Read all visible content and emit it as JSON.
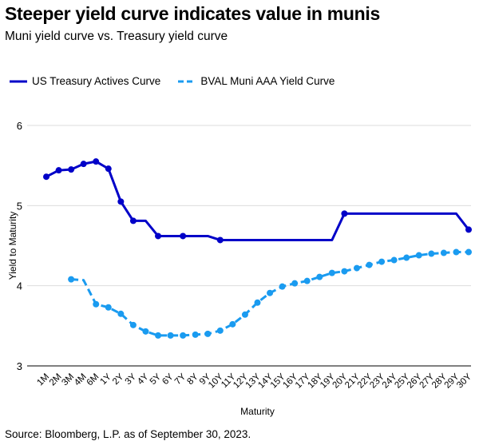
{
  "title": "Steeper yield curve indicates value in munis",
  "subtitle": "Muni yield curve vs. Treasury yield curve",
  "source": "Source: Bloomberg, L.P. as of September 30, 2023.",
  "chart_data": {
    "type": "line",
    "xlabel": "Maturity",
    "ylabel": "Yield to Maturity",
    "ylim": [
      3,
      6
    ],
    "yticks": [
      "3",
      "4",
      "5",
      "6"
    ],
    "grid": true,
    "legend_position": "top-left",
    "categories": [
      "1M",
      "2M",
      "3M",
      "4M",
      "6M",
      "1Y",
      "2Y",
      "3Y",
      "4Y",
      "5Y",
      "6Y",
      "7Y",
      "8Y",
      "9Y",
      "10Y",
      "11Y",
      "12Y",
      "13Y",
      "14Y",
      "15Y",
      "16Y",
      "17Y",
      "18Y",
      "19Y",
      "20Y",
      "21Y",
      "22Y",
      "23Y",
      "24Y",
      "25Y",
      "26Y",
      "27Y",
      "28Y",
      "29Y",
      "30Y"
    ],
    "series": [
      {
        "name": "US Treasury Actives Curve",
        "color": "#0000c8",
        "style": "solid",
        "values": [
          5.36,
          5.44,
          5.45,
          5.52,
          5.55,
          5.46,
          5.05,
          4.81,
          4.81,
          4.62,
          4.62,
          4.62,
          4.62,
          4.62,
          4.57,
          4.57,
          4.57,
          4.57,
          4.57,
          4.57,
          4.57,
          4.57,
          4.57,
          4.57,
          4.9,
          4.9,
          4.9,
          4.9,
          4.9,
          4.9,
          4.9,
          4.9,
          4.9,
          4.9,
          4.7
        ],
        "markers": [
          1,
          1,
          1,
          1,
          1,
          1,
          1,
          1,
          0,
          1,
          0,
          1,
          0,
          0,
          1,
          0,
          0,
          0,
          0,
          0,
          0,
          0,
          0,
          0,
          1,
          0,
          0,
          0,
          0,
          0,
          0,
          0,
          0,
          0,
          1
        ]
      },
      {
        "name": "BVAL Muni AAA Yield Curve",
        "color": "#1a9bf0",
        "style": "dashed",
        "values": [
          null,
          null,
          4.08,
          4.07,
          3.77,
          3.73,
          3.65,
          3.51,
          3.43,
          3.38,
          3.38,
          3.38,
          3.39,
          3.4,
          3.44,
          3.52,
          3.64,
          3.79,
          3.91,
          3.99,
          4.03,
          4.06,
          4.11,
          4.16,
          4.18,
          4.22,
          4.26,
          4.3,
          4.32,
          4.35,
          4.38,
          4.4,
          4.41,
          4.42,
          4.42
        ],
        "markers": [
          0,
          0,
          1,
          0,
          1,
          1,
          1,
          1,
          1,
          1,
          1,
          1,
          1,
          1,
          1,
          1,
          1,
          1,
          1,
          1,
          1,
          1,
          1,
          1,
          1,
          1,
          1,
          1,
          1,
          1,
          1,
          1,
          1,
          1,
          1
        ]
      }
    ]
  }
}
